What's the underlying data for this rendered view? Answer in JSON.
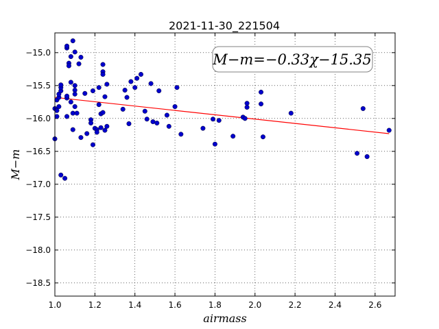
{
  "chart_data": {
    "type": "scatter",
    "title": "2021-11-30_221504",
    "xlabel": "airmass",
    "ylabel": "M−m",
    "xlim": [
      1.0,
      2.7
    ],
    "ylim": [
      -18.7,
      -14.7
    ],
    "y_inverted": true,
    "grid": true,
    "grid_style": "dotted",
    "xticks": [
      "1.0",
      "1.2",
      "1.4",
      "1.6",
      "1.8",
      "2.0",
      "2.2",
      "2.4",
      "2.6"
    ],
    "yticks": [
      "−15.0",
      "−15.5",
      "−16.0",
      "−16.5",
      "−17.0",
      "−17.5",
      "−18.0",
      "−18.5"
    ],
    "annotation": "M−m=−0.33χ−15.35",
    "fit_line": {
      "slope": -0.33,
      "intercept": -15.35,
      "x_range": [
        1.0,
        2.67
      ],
      "color": "#ff0000"
    },
    "point_color": "#0000cc",
    "points": [
      [
        1.0,
        -16.31
      ],
      [
        1.0,
        -15.85
      ],
      [
        1.01,
        -15.97
      ],
      [
        1.01,
        -15.88
      ],
      [
        1.01,
        -15.72
      ],
      [
        1.02,
        -15.82
      ],
      [
        1.02,
        -15.68
      ],
      [
        1.02,
        -15.63
      ],
      [
        1.03,
        -15.58
      ],
      [
        1.03,
        -15.53
      ],
      [
        1.03,
        -15.49
      ],
      [
        1.03,
        -16.86
      ],
      [
        1.05,
        -16.91
      ],
      [
        1.06,
        -15.69
      ],
      [
        1.06,
        -15.66
      ],
      [
        1.06,
        -14.93
      ],
      [
        1.06,
        -14.9
      ],
      [
        1.06,
        -15.97
      ],
      [
        1.07,
        -15.16
      ],
      [
        1.07,
        -15.2
      ],
      [
        1.08,
        -15.45
      ],
      [
        1.08,
        -15.75
      ],
      [
        1.08,
        -15.06
      ],
      [
        1.09,
        -14.82
      ],
      [
        1.09,
        -15.92
      ],
      [
        1.09,
        -16.17
      ],
      [
        1.1,
        -15.5
      ],
      [
        1.1,
        -15.57
      ],
      [
        1.1,
        -15.63
      ],
      [
        1.1,
        -15.82
      ],
      [
        1.1,
        -14.99
      ],
      [
        1.11,
        -15.92
      ],
      [
        1.12,
        -15.17
      ],
      [
        1.13,
        -15.07
      ],
      [
        1.13,
        -16.29
      ],
      [
        1.15,
        -15.62
      ],
      [
        1.16,
        -16.23
      ],
      [
        1.18,
        -16.02
      ],
      [
        1.18,
        -16.07
      ],
      [
        1.19,
        -15.58
      ],
      [
        1.19,
        -16.4
      ],
      [
        1.2,
        -16.15
      ],
      [
        1.21,
        -16.17
      ],
      [
        1.21,
        -16.21
      ],
      [
        1.22,
        -15.53
      ],
      [
        1.22,
        -15.79
      ],
      [
        1.23,
        -15.93
      ],
      [
        1.23,
        -16.14
      ],
      [
        1.24,
        -15.18
      ],
      [
        1.24,
        -15.29
      ],
      [
        1.24,
        -15.33
      ],
      [
        1.24,
        -15.91
      ],
      [
        1.25,
        -15.67
      ],
      [
        1.25,
        -16.18
      ],
      [
        1.26,
        -16.12
      ],
      [
        1.26,
        -15.48
      ],
      [
        1.34,
        -15.86
      ],
      [
        1.35,
        -15.57
      ],
      [
        1.36,
        -15.68
      ],
      [
        1.37,
        -16.08
      ],
      [
        1.38,
        -15.44
      ],
      [
        1.4,
        -15.53
      ],
      [
        1.41,
        -15.39
      ],
      [
        1.43,
        -15.33
      ],
      [
        1.45,
        -15.89
      ],
      [
        1.46,
        -16.01
      ],
      [
        1.48,
        -15.47
      ],
      [
        1.49,
        -16.05
      ],
      [
        1.51,
        -16.07
      ],
      [
        1.52,
        -15.58
      ],
      [
        1.56,
        -15.95
      ],
      [
        1.57,
        -16.12
      ],
      [
        1.6,
        -15.82
      ],
      [
        1.61,
        -15.53
      ],
      [
        1.63,
        -16.24
      ],
      [
        1.74,
        -16.15
      ],
      [
        1.79,
        -16.01
      ],
      [
        1.8,
        -16.39
      ],
      [
        1.82,
        -16.03
      ],
      [
        1.89,
        -16.27
      ],
      [
        1.94,
        -15.98
      ],
      [
        1.95,
        -16.0
      ],
      [
        1.96,
        -15.77
      ],
      [
        1.96,
        -15.83
      ],
      [
        2.03,
        -15.78
      ],
      [
        2.03,
        -15.6
      ],
      [
        2.04,
        -16.28
      ],
      [
        2.18,
        -15.92
      ],
      [
        2.51,
        -16.53
      ],
      [
        2.54,
        -15.85
      ],
      [
        2.56,
        -16.58
      ],
      [
        2.67,
        -16.18
      ]
    ]
  }
}
